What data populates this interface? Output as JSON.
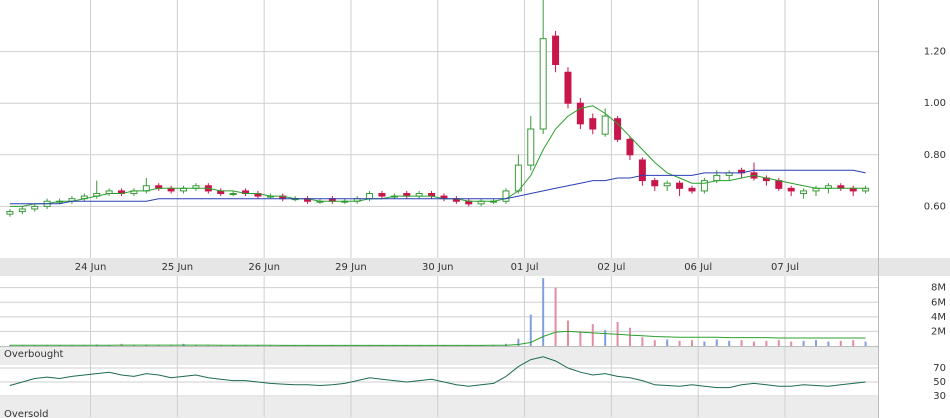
{
  "chart_data": [
    {
      "type": "candlestick",
      "x": [
        0,
        1,
        2,
        3,
        4,
        5,
        6,
        7,
        8,
        9,
        10,
        11,
        12,
        13,
        14,
        15,
        16,
        17,
        18,
        19,
        20,
        21,
        22,
        23,
        24,
        25,
        26,
        27,
        28,
        29,
        30,
        31,
        32,
        33,
        34,
        35,
        36,
        37,
        38,
        39,
        40,
        41,
        42,
        43,
        44,
        45,
        46,
        47,
        48,
        49,
        50,
        51,
        52,
        53,
        54,
        55,
        56,
        57,
        58,
        59,
        60,
        61,
        62,
        63,
        64,
        65,
        66,
        67,
        68,
        69
      ],
      "xlim": [
        -0.8,
        70
      ],
      "xticks": [
        {
          "value": 6.5,
          "label": "24 Jun"
        },
        {
          "value": 13.5,
          "label": "25 Jun"
        },
        {
          "value": 20.5,
          "label": "26 Jun"
        },
        {
          "value": 27.5,
          "label": "29 Jun"
        },
        {
          "value": 34.5,
          "label": "30 Jun"
        },
        {
          "value": 41.5,
          "label": "01 Jul"
        },
        {
          "value": 48.5,
          "label": "02 Jul"
        },
        {
          "value": 55.5,
          "label": "06 Jul"
        },
        {
          "value": 62.5,
          "label": "07 Jul"
        }
      ],
      "open": [
        0.57,
        0.58,
        0.59,
        0.6,
        0.62,
        0.62,
        0.63,
        0.64,
        0.65,
        0.66,
        0.65,
        0.66,
        0.68,
        0.67,
        0.66,
        0.67,
        0.68,
        0.66,
        0.65,
        0.66,
        0.65,
        0.64,
        0.64,
        0.63,
        0.63,
        0.62,
        0.63,
        0.62,
        0.62,
        0.63,
        0.65,
        0.64,
        0.65,
        0.64,
        0.65,
        0.64,
        0.63,
        0.62,
        0.61,
        0.62,
        0.62,
        0.66,
        0.76,
        0.9,
        1.26,
        1.12,
        1.0,
        0.94,
        0.88,
        0.94,
        0.86,
        0.78,
        0.7,
        0.68,
        0.69,
        0.67,
        0.66,
        0.7,
        0.72,
        0.74,
        0.73,
        0.71,
        0.7,
        0.67,
        0.65,
        0.66,
        0.67,
        0.68,
        0.67,
        0.66
      ],
      "high": [
        0.59,
        0.6,
        0.61,
        0.63,
        0.63,
        0.64,
        0.65,
        0.7,
        0.67,
        0.67,
        0.67,
        0.71,
        0.69,
        0.68,
        0.68,
        0.69,
        0.69,
        0.67,
        0.66,
        0.67,
        0.66,
        0.65,
        0.65,
        0.64,
        0.64,
        0.63,
        0.64,
        0.63,
        0.64,
        0.66,
        0.66,
        0.65,
        0.66,
        0.66,
        0.66,
        0.65,
        0.64,
        0.63,
        0.63,
        0.63,
        0.67,
        0.8,
        0.95,
        1.4,
        1.28,
        1.14,
        1.02,
        0.96,
        0.98,
        0.95,
        0.87,
        0.79,
        0.71,
        0.7,
        0.7,
        0.68,
        0.71,
        0.74,
        0.74,
        0.75,
        0.77,
        0.72,
        0.71,
        0.68,
        0.67,
        0.68,
        0.69,
        0.69,
        0.68,
        0.68
      ],
      "low": [
        0.56,
        0.57,
        0.58,
        0.59,
        0.61,
        0.61,
        0.62,
        0.63,
        0.64,
        0.64,
        0.64,
        0.65,
        0.66,
        0.65,
        0.65,
        0.66,
        0.65,
        0.64,
        0.64,
        0.64,
        0.63,
        0.63,
        0.62,
        0.62,
        0.61,
        0.61,
        0.61,
        0.61,
        0.61,
        0.62,
        0.63,
        0.63,
        0.63,
        0.63,
        0.63,
        0.62,
        0.61,
        0.6,
        0.6,
        0.61,
        0.61,
        0.65,
        0.74,
        0.88,
        1.12,
        0.98,
        0.9,
        0.88,
        0.87,
        0.85,
        0.78,
        0.68,
        0.66,
        0.66,
        0.64,
        0.65,
        0.65,
        0.69,
        0.7,
        0.71,
        0.7,
        0.68,
        0.66,
        0.64,
        0.63,
        0.64,
        0.65,
        0.66,
        0.64,
        0.65
      ],
      "close": [
        0.58,
        0.59,
        0.6,
        0.62,
        0.62,
        0.63,
        0.64,
        0.65,
        0.66,
        0.65,
        0.66,
        0.68,
        0.67,
        0.66,
        0.67,
        0.68,
        0.66,
        0.65,
        0.65,
        0.65,
        0.64,
        0.64,
        0.63,
        0.63,
        0.62,
        0.62,
        0.62,
        0.62,
        0.63,
        0.65,
        0.64,
        0.64,
        0.64,
        0.65,
        0.64,
        0.63,
        0.62,
        0.61,
        0.62,
        0.62,
        0.66,
        0.76,
        0.9,
        1.25,
        1.15,
        1.0,
        0.92,
        0.9,
        0.95,
        0.86,
        0.8,
        0.7,
        0.68,
        0.69,
        0.67,
        0.66,
        0.7,
        0.72,
        0.73,
        0.73,
        0.71,
        0.7,
        0.67,
        0.66,
        0.66,
        0.67,
        0.68,
        0.67,
        0.66,
        0.67
      ],
      "up_color": "#3a9a3a",
      "down_color": "#c8164a",
      "overlays": [
        {
          "color": "#2ca02c",
          "values": [
            0.6,
            0.6,
            0.61,
            0.61,
            0.62,
            0.62,
            0.63,
            0.64,
            0.65,
            0.65,
            0.66,
            0.66,
            0.67,
            0.67,
            0.67,
            0.67,
            0.67,
            0.66,
            0.66,
            0.65,
            0.65,
            0.64,
            0.64,
            0.63,
            0.63,
            0.62,
            0.62,
            0.62,
            0.62,
            0.63,
            0.63,
            0.64,
            0.64,
            0.64,
            0.64,
            0.63,
            0.63,
            0.62,
            0.62,
            0.62,
            0.63,
            0.66,
            0.72,
            0.82,
            0.9,
            0.95,
            0.98,
            0.99,
            0.96,
            0.92,
            0.87,
            0.82,
            0.77,
            0.73,
            0.71,
            0.69,
            0.69,
            0.7,
            0.7,
            0.71,
            0.72,
            0.71,
            0.7,
            0.69,
            0.68,
            0.67,
            0.67,
            0.67,
            0.67,
            0.67
          ]
        },
        {
          "color": "#2a3fb5",
          "values": [
            0.61,
            0.61,
            0.61,
            0.61,
            0.61,
            0.62,
            0.62,
            0.62,
            0.62,
            0.62,
            0.62,
            0.62,
            0.63,
            0.63,
            0.63,
            0.63,
            0.63,
            0.63,
            0.63,
            0.63,
            0.63,
            0.63,
            0.63,
            0.63,
            0.63,
            0.63,
            0.63,
            0.63,
            0.63,
            0.63,
            0.63,
            0.63,
            0.63,
            0.63,
            0.63,
            0.63,
            0.63,
            0.63,
            0.63,
            0.63,
            0.63,
            0.64,
            0.65,
            0.66,
            0.67,
            0.68,
            0.69,
            0.7,
            0.7,
            0.71,
            0.71,
            0.72,
            0.72,
            0.72,
            0.72,
            0.72,
            0.73,
            0.73,
            0.73,
            0.73,
            0.74,
            0.74,
            0.74,
            0.74,
            0.74,
            0.74,
            0.74,
            0.74,
            0.74,
            0.73
          ]
        }
      ],
      "ylim": [
        0.4,
        1.4
      ],
      "yticks": [
        {
          "value": 0.6,
          "label": "0.60"
        },
        {
          "value": 0.8,
          "label": "0.80"
        },
        {
          "value": 1.0,
          "label": "1.00"
        },
        {
          "value": 1.2,
          "label": "1.20"
        }
      ],
      "grid": true
    },
    {
      "type": "bar",
      "x": [
        0,
        1,
        2,
        3,
        4,
        5,
        6,
        7,
        8,
        9,
        10,
        11,
        12,
        13,
        14,
        15,
        16,
        17,
        18,
        19,
        20,
        21,
        22,
        23,
        24,
        25,
        26,
        27,
        28,
        29,
        30,
        31,
        32,
        33,
        34,
        35,
        36,
        37,
        38,
        39,
        40,
        41,
        42,
        43,
        44,
        45,
        46,
        47,
        48,
        49,
        50,
        51,
        52,
        53,
        54,
        55,
        56,
        57,
        58,
        59,
        60,
        61,
        62,
        63,
        64,
        65,
        66,
        67,
        68,
        69
      ],
      "values": [
        100000,
        80000,
        120000,
        60000,
        90000,
        70000,
        100000,
        200000,
        90000,
        300000,
        60000,
        100000,
        80000,
        90000,
        300000,
        100000,
        70000,
        60000,
        80000,
        90000,
        70000,
        60000,
        80000,
        100000,
        60000,
        90000,
        70000,
        80000,
        100000,
        60000,
        80000,
        90000,
        70000,
        60000,
        80000,
        90000,
        70000,
        60000,
        80000,
        150000,
        300000,
        1000000,
        4300000,
        9300000,
        8000000,
        3500000,
        2000000,
        3000000,
        2200000,
        3300000,
        2500000,
        1200000,
        800000,
        900000,
        700000,
        800000,
        600000,
        900000,
        700000,
        800000,
        600000,
        700000,
        800000,
        600000,
        700000,
        800000,
        600000,
        700000,
        800000,
        600000
      ],
      "up_color": "#7f9fdf",
      "down_color": "#e48ca0",
      "overlays": [
        {
          "color": "#2ca02c",
          "values": [
            100000,
            100000,
            100000,
            100000,
            100000,
            100000,
            100000,
            110000,
            110000,
            120000,
            120000,
            120000,
            120000,
            120000,
            130000,
            130000,
            120000,
            110000,
            100000,
            100000,
            90000,
            90000,
            80000,
            80000,
            80000,
            80000,
            80000,
            80000,
            80000,
            80000,
            80000,
            80000,
            80000,
            80000,
            80000,
            80000,
            80000,
            80000,
            80000,
            90000,
            100000,
            200000,
            500000,
            1300000,
            1900000,
            2000000,
            1900000,
            1800000,
            1700000,
            1600000,
            1500000,
            1400000,
            1300000,
            1250000,
            1200000,
            1200000,
            1200000,
            1200000,
            1150000,
            1150000,
            1150000,
            1150000,
            1100000,
            1100000,
            1100000,
            1100000,
            1100000,
            1100000,
            1100000,
            1100000
          ]
        }
      ],
      "ylim": [
        0,
        9600000
      ],
      "yticks": [
        {
          "value": 2000000,
          "label": "2M"
        },
        {
          "value": 4000000,
          "label": "4M"
        },
        {
          "value": 6000000,
          "label": "6M"
        },
        {
          "value": 8000000,
          "label": "8M"
        }
      ],
      "grid": true
    },
    {
      "type": "line",
      "x": [
        0,
        1,
        2,
        3,
        4,
        5,
        6,
        7,
        8,
        9,
        10,
        11,
        12,
        13,
        14,
        15,
        16,
        17,
        18,
        19,
        20,
        21,
        22,
        23,
        24,
        25,
        26,
        27,
        28,
        29,
        30,
        31,
        32,
        33,
        34,
        35,
        36,
        37,
        38,
        39,
        40,
        41,
        42,
        43,
        44,
        45,
        46,
        47,
        48,
        49,
        50,
        51,
        52,
        53,
        54,
        55,
        56,
        57,
        58,
        59,
        60,
        61,
        62,
        63,
        64,
        65,
        66,
        67,
        68,
        69
      ],
      "values": [
        45,
        50,
        55,
        57,
        55,
        58,
        60,
        62,
        64,
        60,
        58,
        62,
        60,
        56,
        58,
        60,
        56,
        54,
        52,
        52,
        50,
        48,
        47,
        46,
        46,
        45,
        46,
        48,
        52,
        56,
        54,
        52,
        50,
        52,
        54,
        50,
        46,
        44,
        46,
        48,
        58,
        72,
        82,
        86,
        80,
        70,
        64,
        60,
        62,
        58,
        56,
        52,
        46,
        45,
        44,
        46,
        44,
        42,
        42,
        46,
        48,
        46,
        44,
        44,
        46,
        45,
        44,
        46,
        48,
        50
      ],
      "color": "#1e6b4e",
      "ylim": [
        0,
        100
      ],
      "yticks": [
        30,
        50,
        70
      ],
      "annotations": [
        "Overbought",
        "Oversold"
      ],
      "grid": true
    }
  ]
}
